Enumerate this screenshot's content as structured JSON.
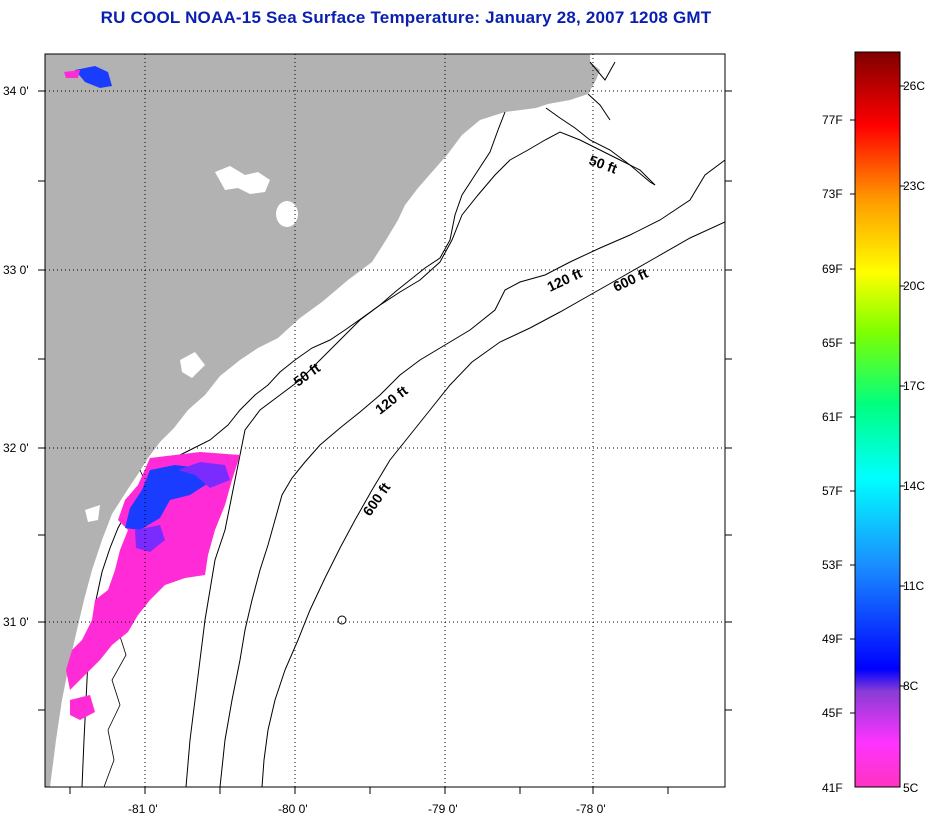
{
  "title": "RU COOL  NOAA-15  Sea Surface Temperature:  January 28, 2007 1208 GMT",
  "map": {
    "latitude_labels": [
      "34 0'",
      "33 0'",
      "32 0'",
      "31 0'"
    ],
    "longitude_labels": [
      "-81 0'",
      "-80 0'",
      "-79 0'",
      "-78 0'"
    ],
    "isobath_labels": [
      "50 ft",
      "50 ft",
      "120 ft",
      "120 ft",
      "600 ft",
      "600 ft"
    ],
    "colors": {
      "land": "#b2b2b2",
      "ocean": "#ffffff",
      "cold_sst": "#ff2bd6",
      "violet_sst": "#7a2cff",
      "blue_sst": "#1a3cff"
    }
  },
  "colorbar": {
    "fahrenheit_labels": [
      "77F",
      "73F",
      "69F",
      "65F",
      "61F",
      "57F",
      "53F",
      "49F",
      "45F",
      "41F"
    ],
    "celsius_labels": [
      "26C",
      "23C",
      "20C",
      "17C",
      "14C",
      "11C",
      "8C",
      "5C"
    ],
    "range_celsius": [
      5,
      27
    ]
  }
}
